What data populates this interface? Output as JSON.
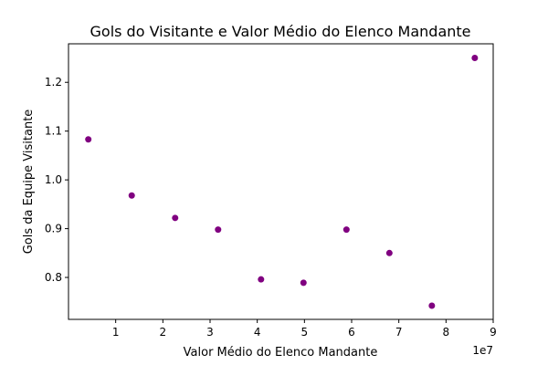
{
  "chart_data": {
    "type": "scatter",
    "title": "Gols do Visitante e Valor Médio do Elenco Mandante",
    "xlabel": "Valor Médio do Elenco Mandante",
    "ylabel": "Gols da Equipe Visitante",
    "x_offset_label": "1e7",
    "x_scale": 10000000,
    "xlim": [
      0,
      9
    ],
    "ylim": [
      0.714,
      1.279
    ],
    "x_ticks": [
      1,
      2,
      3,
      4,
      5,
      6,
      7,
      8,
      9
    ],
    "y_ticks": [
      0.8,
      0.9,
      1.0,
      1.1,
      1.2
    ],
    "point_color": "#800080",
    "grid": false,
    "points": [
      {
        "x": 0.42,
        "y": 1.083
      },
      {
        "x": 1.34,
        "y": 0.968
      },
      {
        "x": 2.26,
        "y": 0.922
      },
      {
        "x": 3.17,
        "y": 0.898
      },
      {
        "x": 4.08,
        "y": 0.796
      },
      {
        "x": 4.98,
        "y": 0.789
      },
      {
        "x": 5.89,
        "y": 0.898
      },
      {
        "x": 6.8,
        "y": 0.85
      },
      {
        "x": 7.7,
        "y": 0.742
      },
      {
        "x": 8.61,
        "y": 1.25
      }
    ]
  }
}
